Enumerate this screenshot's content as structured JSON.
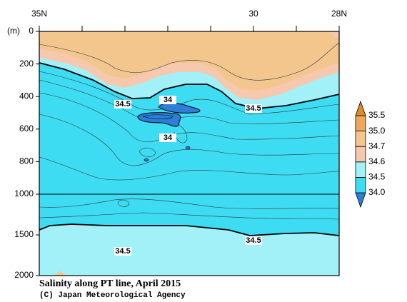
{
  "chart_data": {
    "type": "contour",
    "title": "Salinity along PT line, April 2015",
    "credit": "(C) Japan Meteorological Agency",
    "ylabel": "(m)",
    "xlim": [
      35,
      28
    ],
    "xticks": [
      {
        "value": 35,
        "label": "35N"
      },
      30,
      {
        "value": 28,
        "label": "28N"
      }
    ],
    "xminorticks": [
      34,
      33,
      32,
      31,
      29
    ],
    "ylim": [
      0,
      2000
    ],
    "yticks": [
      0,
      200,
      400,
      600,
      800,
      1000,
      1500,
      2000
    ],
    "levels": [
      {
        "value": 34,
        "label": "34.0"
      },
      34.5,
      34.6,
      34.7,
      {
        "value": 35,
        "label": "35.0"
      },
      35.5
    ],
    "colors": [
      "#2b7fd6",
      "#3ddcf2",
      "#a2f1f8",
      "#f6c8ae",
      "#f3c68e",
      "#eda85c",
      "#e08a2a"
    ],
    "contour_labels": [
      34.5,
      34,
      34.5,
      34,
      34.5,
      34.5
    ]
  }
}
